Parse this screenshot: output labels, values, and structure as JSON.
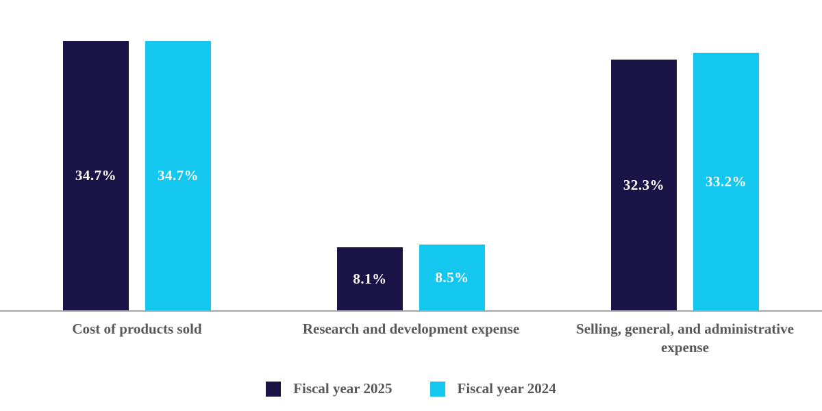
{
  "chart_data": {
    "type": "bar",
    "title": "",
    "xlabel": "",
    "ylabel": "",
    "categories": [
      "Cost of products sold",
      "Research and development expense",
      "Selling, general, and administrative expense"
    ],
    "series": [
      {
        "name": "Fiscal year 2025",
        "values": [
          34.7,
          8.1,
          32.3
        ],
        "data_labels": [
          "34.7%",
          "8.1%",
          "32.3%"
        ],
        "color": "#1a1446"
      },
      {
        "name": "Fiscal year 2024",
        "values": [
          34.7,
          8.5,
          33.2
        ],
        "data_labels": [
          "34.7%",
          "8.5%",
          "33.2%"
        ],
        "color": "#13c7ef"
      }
    ],
    "ylim": [
      0,
      40
    ],
    "grid": false,
    "axes_visible": "x-axis-line-only",
    "legend_position": "bottom",
    "data_label_color": "#ffffff",
    "data_label_position": "center-of-bar"
  },
  "legend": {
    "items": [
      {
        "label": "Fiscal year 2025",
        "color": "#1a1446"
      },
      {
        "label": "Fiscal year 2024",
        "color": "#13c7ef"
      }
    ]
  },
  "styles": {
    "axis_line_color": "#a6a6a6",
    "category_text_color": "#595959",
    "background": "#ffffff"
  }
}
